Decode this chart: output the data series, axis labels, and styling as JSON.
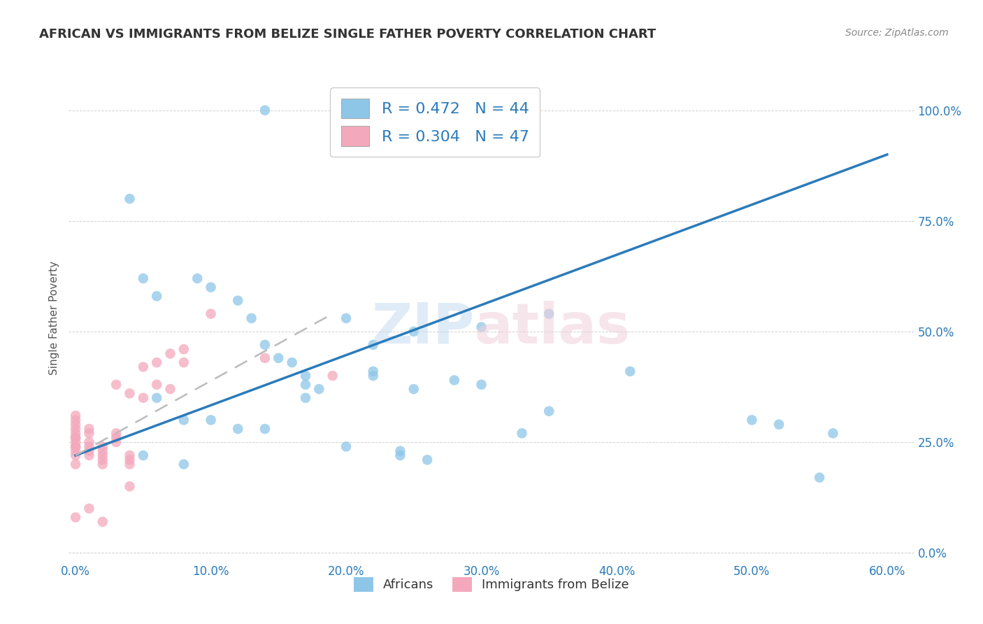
{
  "title": "AFRICAN VS IMMIGRANTS FROM BELIZE SINGLE FATHER POVERTY CORRELATION CHART",
  "source": "Source: ZipAtlas.com",
  "xlabel_vals": [
    0.0,
    0.1,
    0.2,
    0.3,
    0.4,
    0.5,
    0.6
  ],
  "ylabel_vals": [
    0.0,
    0.25,
    0.5,
    0.75,
    1.0
  ],
  "ylabel_label": "Single Father Poverty",
  "legend_blue_label": "R = 0.472   N = 44",
  "legend_pink_label": "R = 0.304   N = 47",
  "legend_bottom_blue": "Africans",
  "legend_bottom_pink": "Immigrants from Belize",
  "blue_color": "#8ec6e8",
  "pink_color": "#f4a8bc",
  "trendline_blue_color": "#2b7bba",
  "trendline_pink_color": "#cc3366",
  "blue_scatter_x": [
    0.14,
    0.2,
    0.04,
    0.05,
    0.06,
    0.09,
    0.1,
    0.12,
    0.13,
    0.14,
    0.15,
    0.16,
    0.17,
    0.17,
    0.18,
    0.17,
    0.2,
    0.22,
    0.22,
    0.25,
    0.25,
    0.3,
    0.3,
    0.35,
    0.35,
    0.41,
    0.5,
    0.56,
    0.55,
    0.06,
    0.08,
    0.1,
    0.12,
    0.14,
    0.2,
    0.22,
    0.24,
    0.24,
    0.26,
    0.28,
    0.05,
    0.08,
    0.33,
    0.52
  ],
  "blue_scatter_y": [
    1.0,
    1.0,
    0.8,
    0.62,
    0.58,
    0.62,
    0.6,
    0.57,
    0.53,
    0.47,
    0.44,
    0.43,
    0.4,
    0.38,
    0.37,
    0.35,
    0.53,
    0.47,
    0.41,
    0.5,
    0.37,
    0.51,
    0.38,
    0.54,
    0.32,
    0.41,
    0.3,
    0.27,
    0.17,
    0.35,
    0.3,
    0.3,
    0.28,
    0.28,
    0.24,
    0.4,
    0.23,
    0.22,
    0.21,
    0.39,
    0.22,
    0.2,
    0.27,
    0.29
  ],
  "pink_scatter_x": [
    0.0,
    0.0,
    0.0,
    0.0,
    0.0,
    0.0,
    0.0,
    0.0,
    0.0,
    0.0,
    0.0,
    0.0,
    0.0,
    0.01,
    0.01,
    0.01,
    0.01,
    0.01,
    0.01,
    0.02,
    0.02,
    0.02,
    0.02,
    0.02,
    0.03,
    0.03,
    0.03,
    0.03,
    0.04,
    0.04,
    0.04,
    0.04,
    0.05,
    0.05,
    0.06,
    0.06,
    0.07,
    0.07,
    0.08,
    0.08,
    0.1,
    0.14,
    0.19,
    0.04,
    0.01,
    0.02,
    0.0
  ],
  "pink_scatter_y": [
    0.2,
    0.22,
    0.23,
    0.24,
    0.24,
    0.25,
    0.26,
    0.26,
    0.27,
    0.28,
    0.29,
    0.3,
    0.31,
    0.22,
    0.23,
    0.24,
    0.25,
    0.27,
    0.28,
    0.2,
    0.21,
    0.22,
    0.23,
    0.24,
    0.25,
    0.26,
    0.27,
    0.38,
    0.2,
    0.21,
    0.22,
    0.36,
    0.35,
    0.42,
    0.38,
    0.43,
    0.37,
    0.45,
    0.43,
    0.46,
    0.54,
    0.44,
    0.4,
    0.15,
    0.1,
    0.07,
    0.08
  ],
  "xlim": [
    -0.005,
    0.62
  ],
  "ylim": [
    -0.02,
    1.08
  ],
  "blue_trend_x0": 0.0,
  "blue_trend_y0": 0.22,
  "blue_trend_x1": 0.6,
  "blue_trend_y1": 0.9,
  "pink_trend_x0": 0.0,
  "pink_trend_y0": 0.22,
  "pink_trend_x1": 0.19,
  "pink_trend_y1": 0.54
}
